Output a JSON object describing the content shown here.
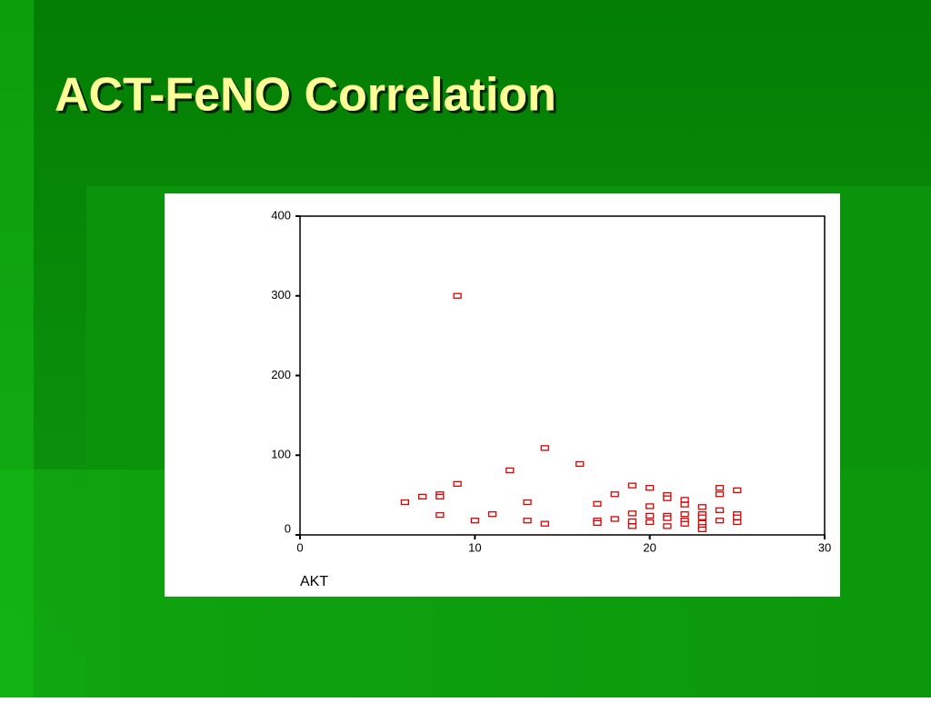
{
  "chart_data": {
    "type": "scatter",
    "title": "ACT-FeNO Correlation",
    "x_label": "AKT",
    "xlim": [
      0,
      30
    ],
    "xticks": [
      0,
      10,
      20,
      30
    ],
    "ylim": [
      0,
      400
    ],
    "yticks": [
      0,
      100,
      200,
      300,
      400
    ],
    "color": "#dd0000",
    "x": [
      6,
      7,
      8,
      8,
      8,
      9,
      9,
      10,
      11,
      12,
      13,
      13,
      14,
      14,
      16,
      17,
      17,
      17,
      18,
      18,
      19,
      19,
      19,
      19,
      20,
      20,
      20,
      20,
      21,
      21,
      21,
      21,
      21,
      22,
      22,
      22,
      22,
      22,
      23,
      23,
      23,
      23,
      23,
      23,
      24,
      24,
      24,
      24,
      25,
      25,
      25,
      25
    ],
    "values": [
      41,
      48,
      51,
      48,
      25,
      300,
      64,
      18,
      26,
      81,
      41,
      18,
      109,
      14,
      89,
      39,
      18,
      15,
      51,
      20,
      62,
      27,
      17,
      11,
      59,
      36,
      24,
      16,
      50,
      46,
      24,
      21,
      11,
      44,
      38,
      26,
      18,
      14,
      35,
      26,
      22,
      15,
      10,
      7,
      59,
      51,
      31,
      18,
      56,
      26,
      22,
      16
    ]
  }
}
